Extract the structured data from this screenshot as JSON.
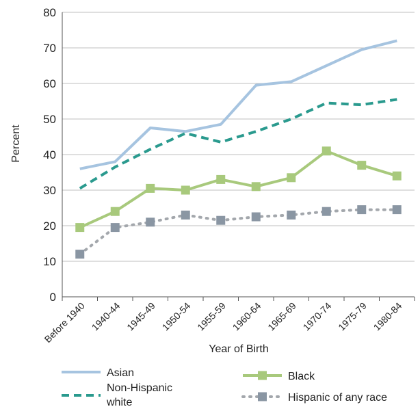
{
  "chart_data": {
    "type": "line",
    "xlabel": "Year of Birth",
    "ylabel": "Percent",
    "ylim": [
      0,
      80
    ],
    "yticks": [
      0,
      10,
      20,
      30,
      40,
      50,
      60,
      70,
      80
    ],
    "grid": "horizontal",
    "legend_position": "bottom",
    "categories": [
      "Before 1940",
      "1940-44",
      "1945-49",
      "1950-54",
      "1955-59",
      "1960-64",
      "1965-69",
      "1970-74",
      "1975-79",
      "1980-84"
    ],
    "series": [
      {
        "name": "Asian",
        "color": "#a6c4e0",
        "style": "solid",
        "marker": "none",
        "values": [
          36,
          38,
          47.5,
          46.5,
          48.5,
          59.5,
          60.5,
          65,
          69.5,
          72
        ]
      },
      {
        "name": "Non-Hispanic white",
        "color": "#2a9a8e",
        "style": "dashed",
        "marker": "none",
        "values": [
          30.5,
          36.5,
          41.5,
          46,
          43.5,
          46.5,
          50,
          54.5,
          54,
          55.5
        ]
      },
      {
        "name": "Black",
        "color": "#a8c97c",
        "style": "solid",
        "marker": "square",
        "values": [
          19.5,
          24,
          30.5,
          30,
          33,
          31,
          33.5,
          41,
          37,
          34
        ]
      },
      {
        "name": "Hispanic of any race",
        "color": "#a3a7ac",
        "marker_color": "#8a96a3",
        "style": "dotted",
        "marker": "square",
        "values": [
          12,
          19.5,
          21,
          23,
          21.5,
          22.5,
          23,
          24,
          24.5,
          24.5
        ]
      }
    ],
    "legend": [
      {
        "series": 0,
        "label_lines": [
          "Asian"
        ]
      },
      {
        "series": 1,
        "label_lines": [
          "Non-Hispanic",
          "white"
        ]
      },
      {
        "series": 2,
        "label_lines": [
          "Black"
        ]
      },
      {
        "series": 3,
        "label_lines": [
          "Hispanic of any race"
        ]
      }
    ]
  }
}
